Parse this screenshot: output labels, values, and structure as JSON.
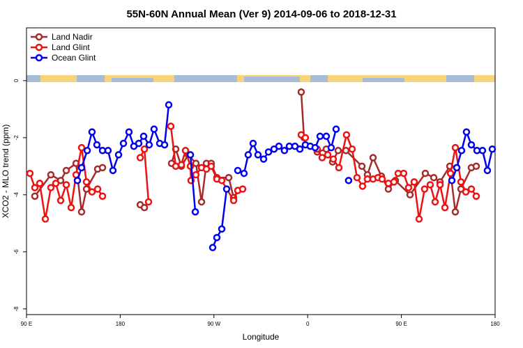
{
  "chart_data": {
    "type": "line",
    "title": "55N-60N Annual Mean (Ver 9)   2014-09-06 to 2018-12-31",
    "x_label": "Longitude",
    "y_label": "XCO2 - MLO trend (ppm)",
    "xlim": [
      90,
      540
    ],
    "xticks": [
      {
        "value": 90,
        "label": "90 E"
      },
      {
        "value": 180,
        "label": "180"
      },
      {
        "value": 270,
        "label": "90 W"
      },
      {
        "value": 360,
        "label": "0"
      },
      {
        "value": 450,
        "label": "90 E"
      },
      {
        "value": 540,
        "label": "180"
      }
    ],
    "ylim": [
      -8.2,
      1.85
    ],
    "yticks": [
      0,
      -2,
      -4,
      -6,
      -8
    ],
    "legend": "top-left",
    "series": [
      {
        "name": "Land Nadir",
        "color": "#a52a2a",
        "x": [
          98.0,
          113.4,
          122.8,
          128.2,
          137.6,
          142.9,
          147.6,
          158.3,
          163.0,
          null,
          199.2,
          203.2,
          null,
          229.3,
          233.3,
          238.7,
          245.4,
          252.7,
          258.1,
          262.8,
          267.4,
          272.8,
          284.2,
          288.9,
          292.9,
          null,
          353.8,
          356.5,
          null,
          369.2,
          377.9,
          383.9,
          389.3,
          396.7,
          412.1,
          417.4,
          422.8,
          430.8,
          437.5,
          444.2,
          458.3,
          473.0,
          481.1,
          487.1,
          496.5,
          501.8,
          507.2,
          517.2,
          521.9
        ],
        "values": [
          -4.05,
          -3.3,
          -3.5,
          -3.15,
          -2.9,
          -4.6,
          -3.8,
          -3.1,
          -3.05,
          null,
          -4.35,
          -4.45,
          null,
          -2.9,
          -2.4,
          -3.0,
          -2.6,
          -2.9,
          -4.25,
          -2.9,
          -2.9,
          -3.4,
          -3.4,
          -4.1,
          -3.85,
          null,
          -0.4,
          -2.0,
          null,
          -2.5,
          -2.4,
          -2.85,
          -2.45,
          -2.45,
          -3.0,
          -3.3,
          -2.7,
          -3.35,
          -3.8,
          -3.5,
          -4.0,
          -3.25,
          -3.4,
          -3.55,
          -3.0,
          -4.6,
          -3.8,
          -3.05,
          -3.0
        ]
      },
      {
        "name": "Land Glint",
        "color": "#ee1111",
        "x": [
          93.3,
          98.0,
          102.7,
          108.1,
          113.4,
          118.1,
          122.8,
          128.2,
          132.9,
          137.6,
          142.9,
          147.6,
          152.9,
          158.3,
          163.0,
          null,
          199.2,
          203.2,
          207.2,
          null,
          228.6,
          233.3,
          238.7,
          242.7,
          247.4,
          248.0,
          252.7,
          258.1,
          262.8,
          267.4,
          272.8,
          277.5,
          288.9,
          292.9,
          297.6,
          null,
          353.8,
          357.8,
          null,
          369.2,
          373.9,
          379.3,
          384.6,
          390.0,
          397.3,
          402.7,
          407.4,
          412.7,
          417.4,
          422.8,
          427.5,
          431.5,
          437.5,
          442.9,
          446.9,
          452.2,
          456.9,
          462.3,
          467.0,
          472.3,
          477.7,
          482.4,
          487.1,
          491.8,
          497.2,
          501.8,
          507.2,
          511.9,
          517.2,
          521.9
        ],
        "values": [
          -3.25,
          -3.75,
          -3.6,
          -4.85,
          -3.75,
          -3.6,
          -4.2,
          -3.65,
          -4.45,
          -3.3,
          -2.35,
          -3.55,
          -3.9,
          -3.8,
          -4.05,
          null,
          -2.7,
          -2.4,
          -4.25,
          null,
          -1.6,
          -3.0,
          -2.95,
          -2.45,
          -3.0,
          -3.5,
          -3.3,
          -3.05,
          -3.1,
          -3.0,
          -3.45,
          -3.5,
          -4.2,
          -3.85,
          -3.8,
          null,
          -1.9,
          -2.0,
          null,
          -2.4,
          -2.7,
          -2.6,
          -2.75,
          -3.05,
          -1.9,
          -2.4,
          -3.4,
          -3.7,
          -3.45,
          -3.45,
          -3.4,
          -3.45,
          -3.6,
          -3.55,
          -3.25,
          -3.25,
          -3.75,
          -3.55,
          -4.85,
          -3.8,
          -3.65,
          -4.25,
          -3.65,
          -4.45,
          -3.25,
          -2.35,
          -3.55,
          -3.9,
          -3.8,
          -4.05
        ]
      },
      {
        "name": "Ocean Glint",
        "color": "#0000ee",
        "x": [
          138.9,
          142.9,
          148.3,
          152.9,
          157.6,
          163.0,
          168.3,
          173.0,
          178.4,
          183.1,
          188.4,
          193.1,
          197.8,
          202.5,
          207.8,
          212.5,
          217.9,
          222.6,
          226.6,
          null,
          247.4,
          252.1,
          null,
          268.8,
          272.8,
          277.5,
          282.2,
          null,
          292.9,
          298.9,
          302.9,
          307.6,
          312.3,
          317.7,
          322.4,
          327.7,
          332.4,
          337.7,
          342.4,
          347.8,
          352.5,
          357.8,
          362.5,
          367.2,
          371.9,
          377.9,
          382.6,
          387.3,
          null,
          399.3,
          null,
          498.5,
          503.2,
          507.8,
          512.5,
          517.2,
          522.6,
          527.9,
          532.6,
          537.3
        ],
        "values": [
          -3.5,
          -3.05,
          -2.45,
          -1.8,
          -2.25,
          -2.45,
          -2.45,
          -3.15,
          -2.6,
          -2.2,
          -1.8,
          -2.3,
          -2.2,
          -1.95,
          -2.25,
          -1.7,
          -2.2,
          -2.25,
          -0.85,
          null,
          -2.6,
          -4.6,
          null,
          -5.85,
          -5.5,
          -5.2,
          -3.8,
          null,
          -3.15,
          -3.25,
          -2.6,
          -2.2,
          -2.6,
          -2.75,
          -2.5,
          -2.4,
          -2.3,
          -2.45,
          -2.3,
          -2.3,
          -2.4,
          -2.25,
          -2.3,
          -2.35,
          -1.95,
          -1.95,
          -2.35,
          -1.7,
          null,
          -3.5,
          null,
          -3.5,
          -3.05,
          -2.45,
          -1.8,
          -2.25,
          -2.45,
          -2.45,
          -3.15,
          -2.4
        ]
      }
    ]
  }
}
